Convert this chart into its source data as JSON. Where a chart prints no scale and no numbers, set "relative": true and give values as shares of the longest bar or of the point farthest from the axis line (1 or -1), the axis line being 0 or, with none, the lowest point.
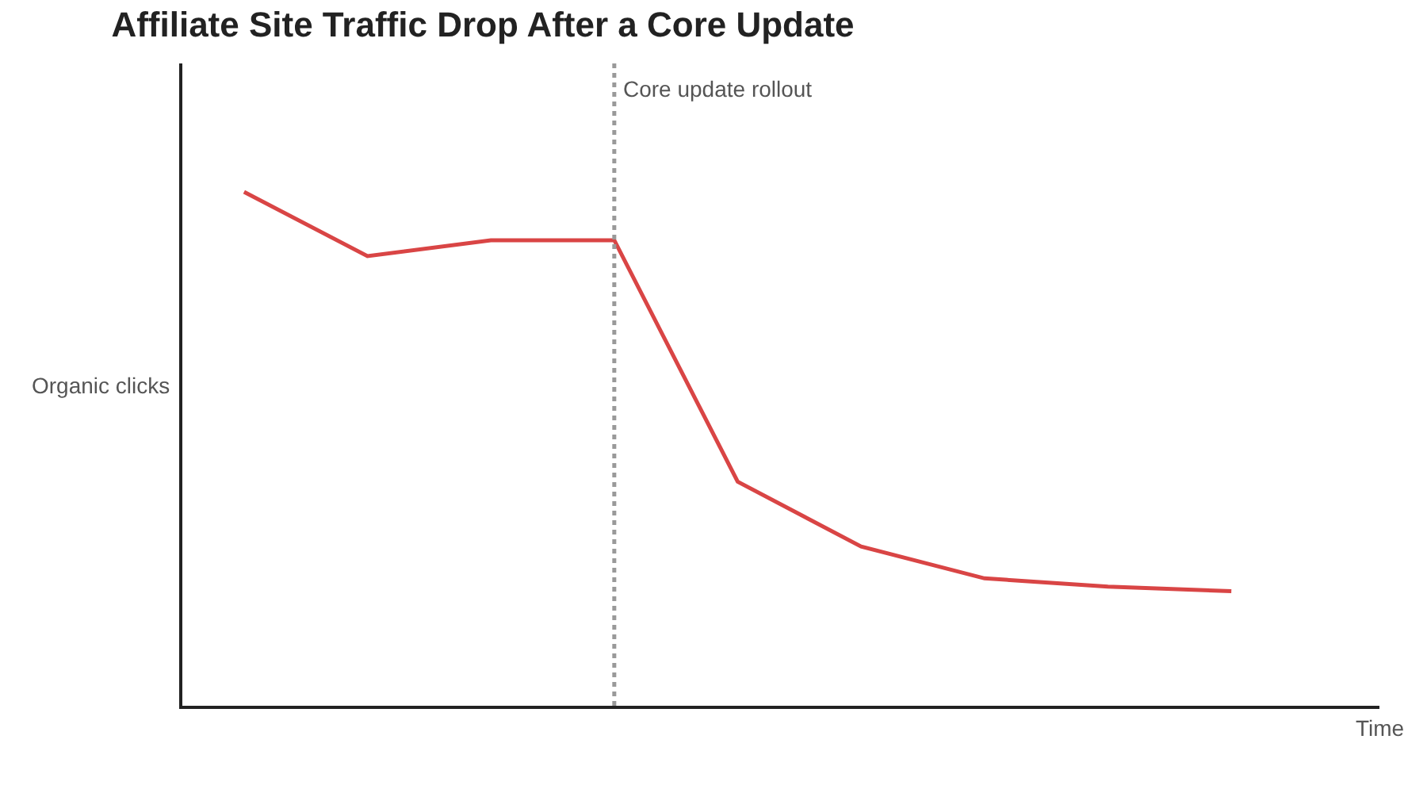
{
  "chart_data": {
    "type": "line",
    "title": "Affiliate Site Traffic Drop After a Core Update",
    "xlabel": "Time",
    "ylabel": "Organic clicks",
    "relative": true,
    "categories": [
      null,
      null,
      null,
      null,
      null,
      null,
      null,
      null,
      null
    ],
    "series": [
      {
        "color": "#d94545",
        "values": [
          1,
          0.875,
          0.906,
          0.906,
          0.436,
          0.31,
          0.248,
          0.232,
          0.223
        ]
      }
    ],
    "annotations": [
      "Core update rollout"
    ],
    "legend": false,
    "marker": "none",
    "line_style": "solid"
  }
}
